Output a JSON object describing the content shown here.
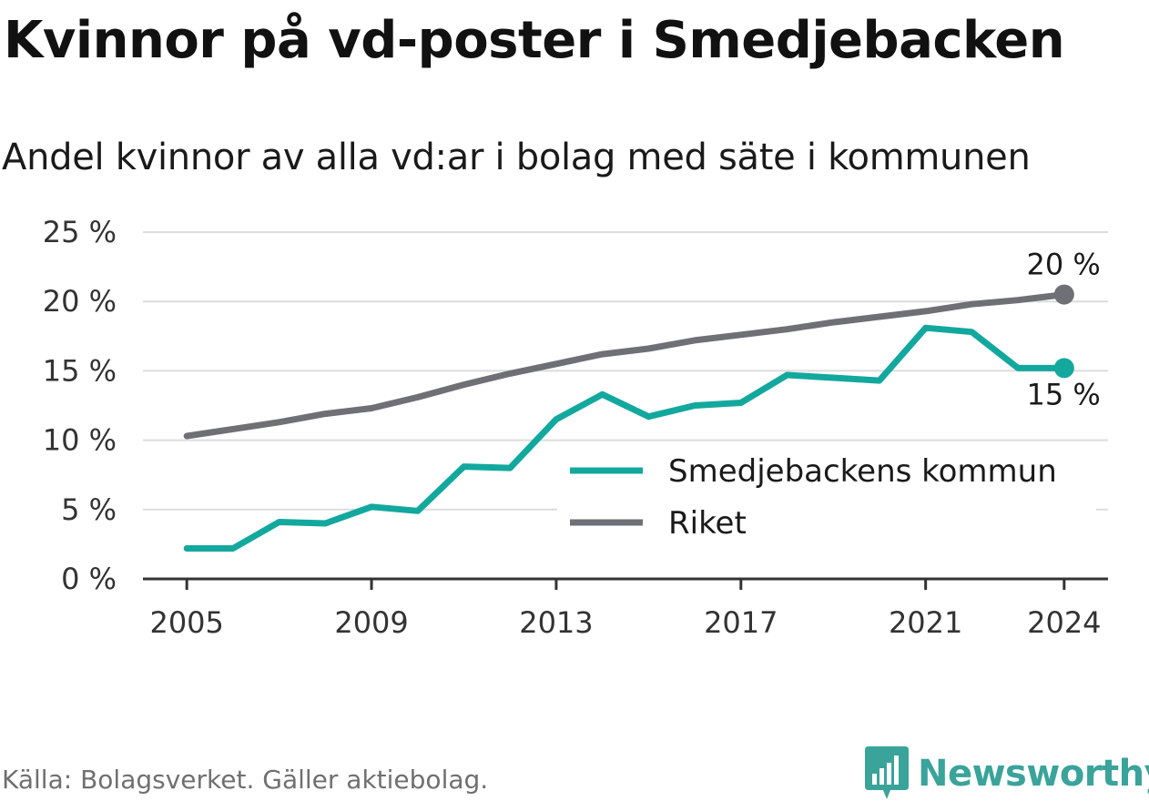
{
  "chart_data": {
    "type": "line",
    "title": "Kvinnor på vd-poster i Smedjebacken",
    "subtitle": "Andel kvinnor av alla vd:ar i bolag med säte i kommunen",
    "x": [
      2005,
      2006,
      2007,
      2008,
      2009,
      2010,
      2011,
      2012,
      2013,
      2014,
      2015,
      2016,
      2017,
      2018,
      2019,
      2020,
      2021,
      2022,
      2023,
      2024
    ],
    "x_ticks": [
      "2005",
      "2009",
      "2013",
      "2017",
      "2021",
      "2024"
    ],
    "y_ticks": [
      "0 %",
      "5 %",
      "10 %",
      "15 %",
      "20 %",
      "25 %"
    ],
    "ylim": [
      0,
      25
    ],
    "grid": true,
    "legend_position": "bottom-right",
    "series": [
      {
        "name": "Smedjebackens kommun",
        "color": "#13a89e",
        "values": [
          2.2,
          2.2,
          4.1,
          4.0,
          5.2,
          4.9,
          8.1,
          8.0,
          11.5,
          13.3,
          11.7,
          12.5,
          12.7,
          14.7,
          14.5,
          14.3,
          18.1,
          17.8,
          15.2,
          15.2
        ],
        "end_label": "15 %"
      },
      {
        "name": "Riket",
        "color": "#6f6f76",
        "values": [
          10.3,
          10.8,
          11.3,
          11.9,
          12.3,
          13.1,
          14.0,
          14.8,
          15.5,
          16.2,
          16.6,
          17.2,
          17.6,
          18.0,
          18.5,
          18.9,
          19.3,
          19.8,
          20.1,
          20.5
        ],
        "end_label": "20 %"
      }
    ]
  },
  "footer": {
    "source": "Källa: Bolagsverket. Gäller aktiebolag.",
    "brand": "Newsworthy",
    "brand_color": "#3aa39a"
  }
}
